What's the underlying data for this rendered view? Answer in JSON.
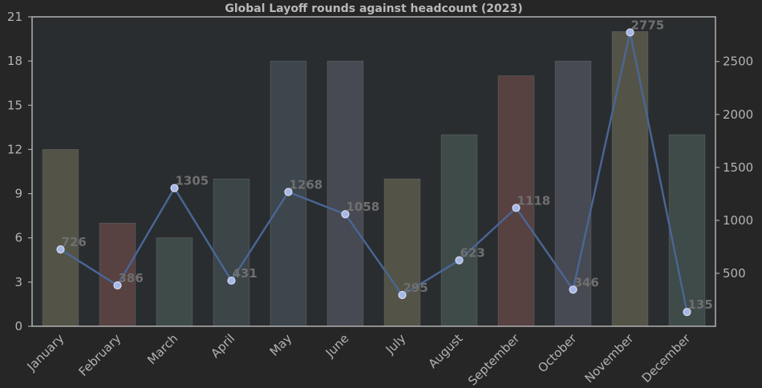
{
  "chart_data": {
    "type": "bar",
    "title": "Global Layoff rounds against headcount (2023)",
    "xlabel": "",
    "ylabel": "",
    "y2label": "",
    "categories": [
      "January",
      "February",
      "March",
      "April",
      "May",
      "June",
      "July",
      "August",
      "September",
      "October",
      "November",
      "December"
    ],
    "series": [
      {
        "type": "bar",
        "axis": "left",
        "values": [
          12,
          7,
          6,
          10,
          18,
          18,
          10,
          13,
          17,
          18,
          20,
          13
        ],
        "colors": [
          "#535447",
          "#574141",
          "#3f4b49",
          "#3c4548",
          "#3c464c",
          "#474a52",
          "#535447",
          "#3f4b49",
          "#574141",
          "#474a52",
          "#535447",
          "#3f4b49"
        ]
      },
      {
        "type": "line",
        "axis": "right",
        "values": [
          726,
          386,
          1305,
          431,
          1268,
          1058,
          295,
          623,
          1118,
          346,
          2775,
          135
        ],
        "data_labels": [
          "726",
          "386",
          "1305",
          "431",
          "1268",
          "1058",
          "295",
          "623",
          "1118",
          "346",
          "2775",
          "135"
        ],
        "color": "#4a6696"
      }
    ],
    "left_axis": {
      "ylim": [
        0,
        21
      ],
      "ticks": [
        "0",
        "3",
        "6",
        "9",
        "12",
        "15",
        "18",
        "21"
      ],
      "tick_values": [
        0,
        3,
        6,
        9,
        12,
        15,
        18,
        21
      ]
    },
    "right_axis": {
      "ylim": [
        0,
        2922
      ],
      "ticks": [
        "500",
        "1000",
        "1500",
        "2000",
        "2500"
      ],
      "tick_values": [
        500,
        1000,
        1500,
        2000,
        2500
      ]
    },
    "grid": false,
    "legend": "none",
    "colors": {
      "background": "#262627",
      "plot_background": "#2a2d30",
      "frame": "#a9a9a9",
      "marker_fill": "#a6b8e8",
      "marker_stroke": "#d8dcf0"
    }
  }
}
